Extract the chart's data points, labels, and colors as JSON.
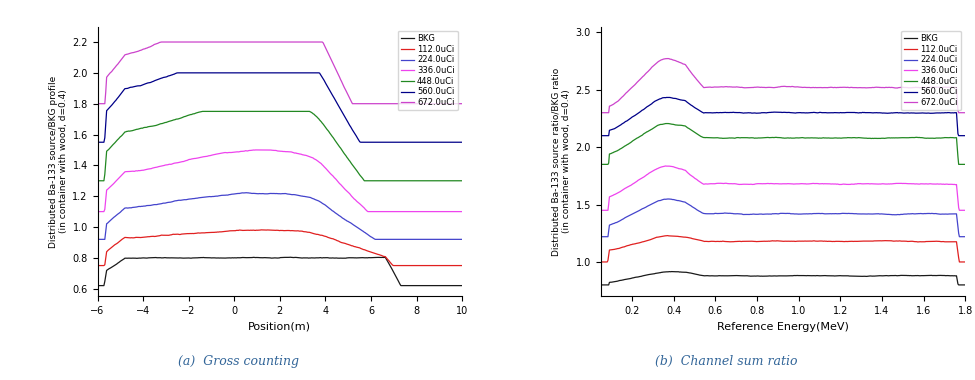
{
  "left_plot": {
    "xlabel": "Position(m)",
    "ylabel": "Distributed Ba-133 source/BKG profile\n(in container with wood, d=0.4)",
    "xlim": [
      -6,
      10
    ],
    "ylim": [
      0.55,
      2.3
    ],
    "yticks": [
      0.6,
      0.8,
      1.0,
      1.2,
      1.4,
      1.6,
      1.8,
      2.0,
      2.2
    ],
    "xticks": [
      -6,
      -4,
      -2,
      0,
      2,
      4,
      6,
      8,
      10
    ],
    "legend_labels": [
      "BKG",
      "112.0uCi",
      "224.0uCi",
      "336.0uCi",
      "448.0uCi",
      "560.0uCi",
      "672.0uCi"
    ],
    "colors": [
      "#1a1a1a",
      "#e02020",
      "#4444cc",
      "#ee44ee",
      "#228822",
      "#000088",
      "#cc44cc"
    ],
    "caption": "(a)  Gross counting"
  },
  "right_plot": {
    "xlabel": "Reference Energy(MeV)",
    "ylabel": "Distributed Ba-133 source ratio/BKG ratio\n(in container with wood, d=0.4)",
    "xlim": [
      0.05,
      1.8
    ],
    "ylim": [
      0.7,
      3.05
    ],
    "yticks": [
      1.0,
      1.5,
      2.0,
      2.5,
      3.0
    ],
    "xticks": [
      0.2,
      0.4,
      0.6,
      0.8,
      1.0,
      1.2,
      1.4,
      1.6,
      1.8
    ],
    "legend_labels": [
      "BKG",
      "112.0uCi",
      "224.0uCi",
      "336.0uCi",
      "448.0uCi",
      "560.0uCi",
      "672.0uCi"
    ],
    "colors": [
      "#1a1a1a",
      "#e02020",
      "#4444cc",
      "#ee44ee",
      "#228822",
      "#000088",
      "#cc44cc"
    ],
    "caption": "(b)  Channel sum ratio"
  }
}
